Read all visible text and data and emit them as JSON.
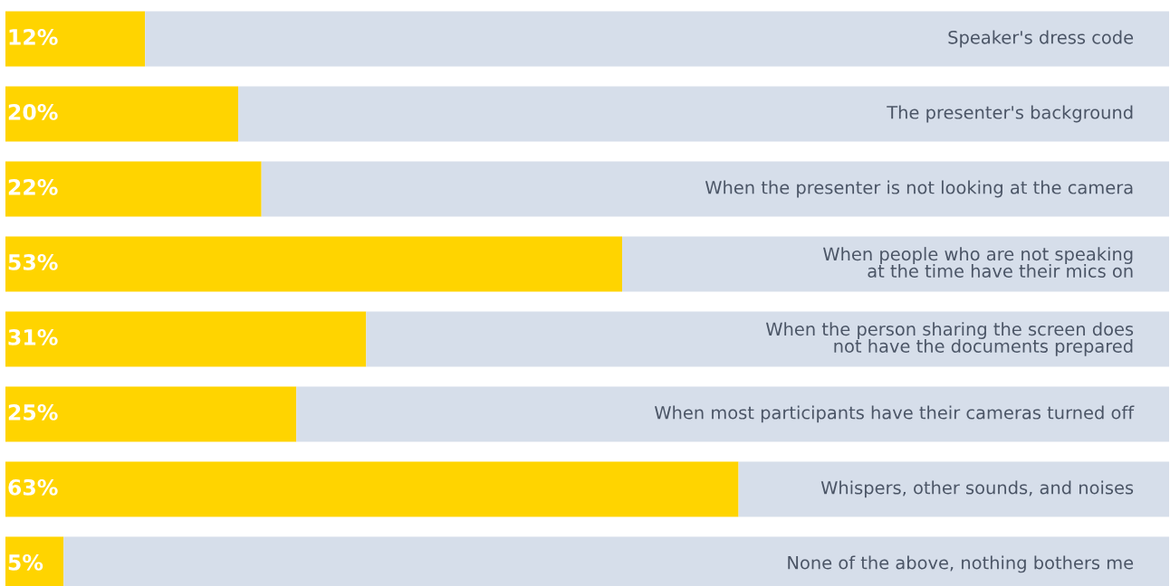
{
  "chart_data": {
    "type": "bar",
    "orientation": "horizontal",
    "stacked": true,
    "categories": [
      "Speaker's dress code",
      "The presenter's background",
      "When the presenter is not looking at the camera",
      "When people who are not speaking\nat the time have their mics on",
      "When the person sharing the screen does\nnot have the documents prepared",
      "When most participants have their cameras turned off",
      "Whispers, other sounds, and noises",
      "None of the above, nothing bothers me"
    ],
    "series": [
      {
        "color": "#ffd400",
        "values": [
          12,
          20,
          22,
          53,
          31,
          25,
          63,
          5
        ],
        "value_labels": [
          "12%",
          "20%",
          "22%",
          "53%",
          "31%",
          "25%",
          "63%",
          "5%"
        ]
      },
      {
        "color": "#d6deea",
        "values": [
          88,
          80,
          78,
          47,
          69,
          75,
          37,
          95
        ]
      }
    ],
    "xlim": [
      0,
      100
    ],
    "legend": false
  }
}
